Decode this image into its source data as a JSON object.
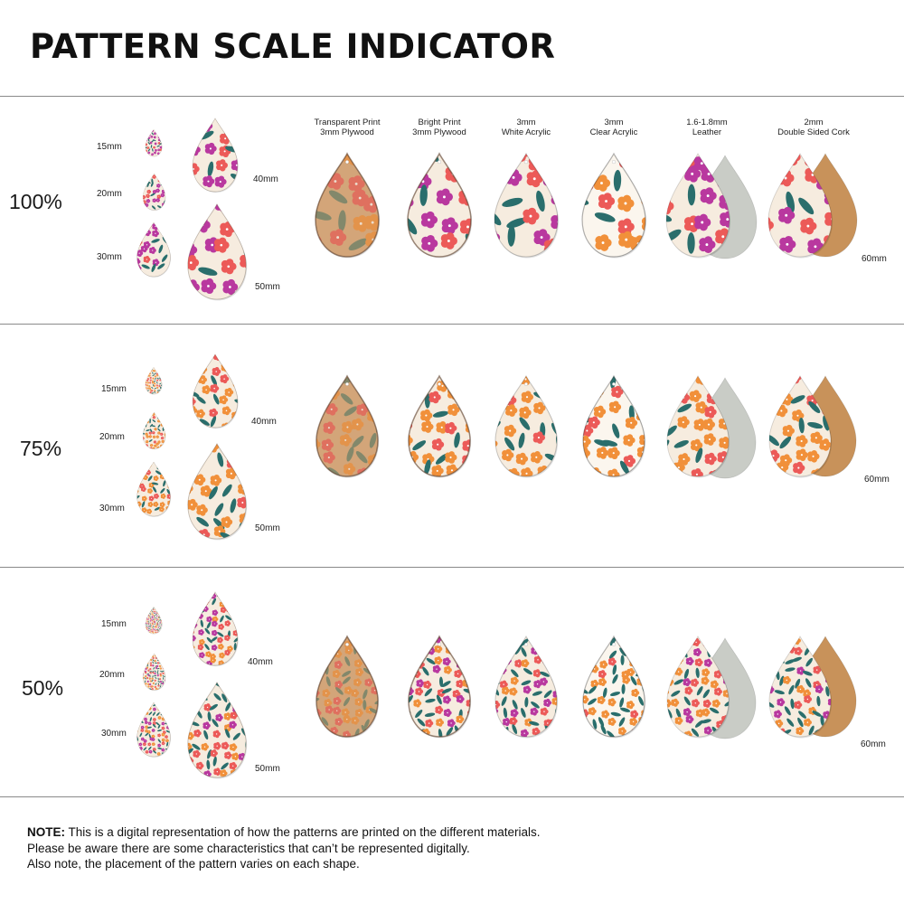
{
  "title": "PATTERN SCALE INDICATOR",
  "materials": [
    {
      "line1": "Transparent Print",
      "line2": "3mm Plywood"
    },
    {
      "line1": "Bright Print",
      "line2": "3mm Plywood"
    },
    {
      "line1": "3mm",
      "line2": "White Acrylic"
    },
    {
      "line1": "3mm",
      "line2": "Clear Acrylic"
    },
    {
      "line1": "1.6-1.8mm",
      "line2": "Leather"
    },
    {
      "line1": "2mm",
      "line2": "Double Sided Cork"
    }
  ],
  "sections": [
    {
      "scale": "100%",
      "sizes": {
        "s15": "15mm",
        "s20": "20mm",
        "s30": "30mm",
        "s40": "40mm",
        "s50": "50mm",
        "s60": "60mm"
      }
    },
    {
      "scale": "75%",
      "sizes": {
        "s15": "15mm",
        "s20": "20mm",
        "s30": "30mm",
        "s40": "40mm",
        "s50": "50mm",
        "s60": "60mm"
      }
    },
    {
      "scale": "50%",
      "sizes": {
        "s15": "15mm",
        "s20": "20mm",
        "s30": "30mm",
        "s40": "40mm",
        "s50": "50mm",
        "s60": "60mm"
      }
    }
  ],
  "note": {
    "label": "NOTE:",
    "line1": " This is a digital representation of how the patterns are printed on the different materials.",
    "line2": "Please be aware there are some characteristics that can’t be represented digitally.",
    "line3": "Also note, the placement of the pattern varies on each shape."
  },
  "colors": {
    "cream": "#f6ecdf",
    "plywood": "#d9ab80",
    "orange": "#f1903a",
    "coral": "#ec5a58",
    "magenta": "#b9389f",
    "teal": "#2a6e6c",
    "leather": "#c9ccc6",
    "cork": "#c8925a"
  }
}
